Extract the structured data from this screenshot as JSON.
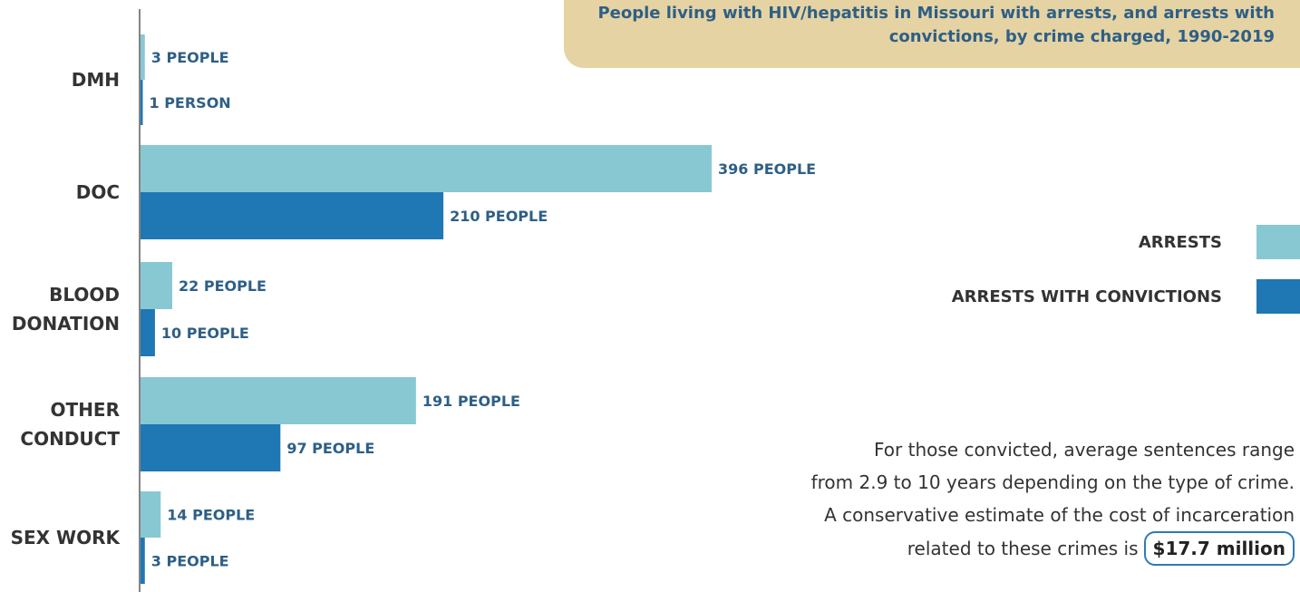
{
  "chart_data": {
    "type": "bar",
    "orientation": "horizontal",
    "title": "People living with HIV/hepatitis in Missouri with arrests, and arrests with convictions, by crime charged, 1990-2019",
    "categories": [
      "DMH",
      "DOC",
      "BLOOD DONATION",
      "OTHER CONDUCT",
      "SEX WORK"
    ],
    "series": [
      {
        "name": "ARRESTS",
        "color": "#88c8d2",
        "values": [
          3,
          396,
          22,
          191,
          14
        ],
        "labels": [
          "3 PEOPLE",
          "396 PEOPLE",
          "22 PEOPLE",
          "191 PEOPLE",
          "14 PEOPLE"
        ]
      },
      {
        "name": "ARRESTS WITH CONVICTIONS",
        "color": "#1f77b4",
        "values": [
          1,
          210,
          10,
          97,
          3
        ],
        "labels": [
          "1 PERSON",
          "210 PEOPLE",
          "10 PEOPLE",
          "97 PEOPLE",
          "3 PEOPLE"
        ]
      }
    ],
    "legend": "right",
    "grid": false
  },
  "note": {
    "line1": "For those convicted, average sentences range",
    "line2": "from 2.9 to 10 years depending on the type of crime.",
    "line3": "A conservative estimate of the cost of incarceration",
    "line4": "related to these crimes is",
    "cost": "$17.7 million"
  }
}
